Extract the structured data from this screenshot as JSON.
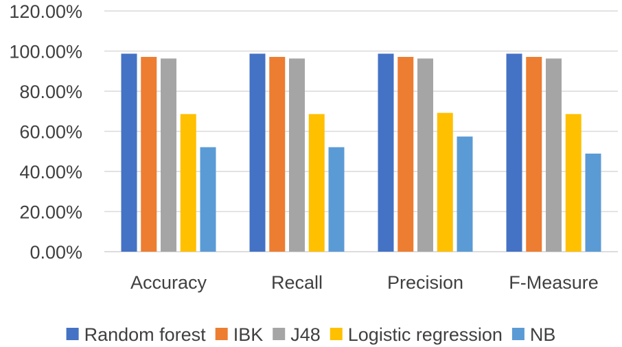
{
  "chart_data": {
    "type": "bar",
    "title": "",
    "xlabel": "",
    "ylabel": "",
    "ylim": [
      0,
      1.2
    ],
    "y_tick_values": [
      0,
      0.2,
      0.4,
      0.6,
      0.8,
      1.0,
      1.2
    ],
    "y_tick_labels": [
      "0.00%",
      "20.00%",
      "40.00%",
      "60.00%",
      "80.00%",
      "100.00%",
      "120.00%"
    ],
    "grid": true,
    "legend_position": "bottom",
    "categories": [
      "Accuracy",
      "Recall",
      "Precision",
      "F-Measure"
    ],
    "series": [
      {
        "name": "Random forest",
        "color": "#4472C4",
        "values": [
          0.987,
          0.987,
          0.987,
          0.987
        ]
      },
      {
        "name": "IBK",
        "color": "#ED7D31",
        "values": [
          0.971,
          0.971,
          0.971,
          0.971
        ]
      },
      {
        "name": "J48",
        "color": "#A5A5A5",
        "values": [
          0.963,
          0.963,
          0.963,
          0.963
        ]
      },
      {
        "name": "Logistic regression",
        "color": "#FFC000",
        "values": [
          0.686,
          0.686,
          0.692,
          0.686
        ]
      },
      {
        "name": "NB",
        "color": "#5B9BD5",
        "values": [
          0.521,
          0.521,
          0.574,
          0.489
        ]
      }
    ]
  }
}
